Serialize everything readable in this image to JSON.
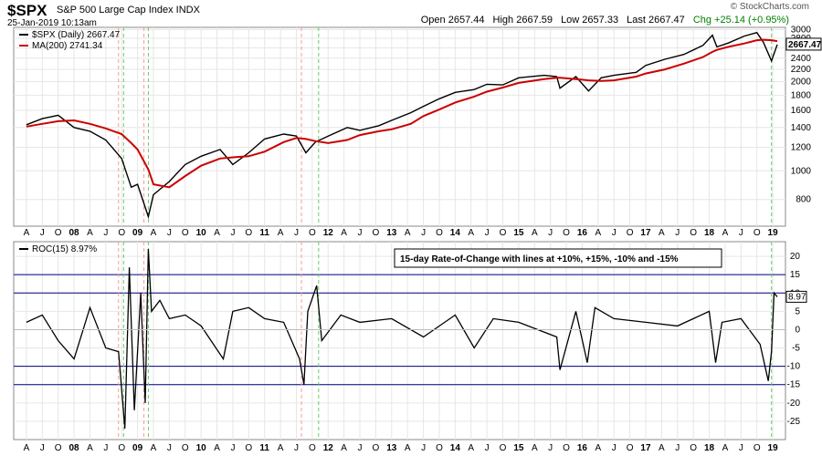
{
  "header": {
    "symbol": "$SPX",
    "name": "S&P 500 Large Cap Index  INDX",
    "date": "25-Jan-2019 10:13am",
    "open": "Open 2657.44",
    "high": "High 2667.59",
    "low": "Low 2657.33",
    "last": "Last 2667.47",
    "chg": "Chg +25.14 (+0.95%)",
    "credit": "© StockCharts.com",
    "chg_color": "#008000"
  },
  "chart_data": [
    {
      "type": "line",
      "title": "$SPX (Daily) 2667.47",
      "y_scale": "log",
      "ylim": [
        650,
        3050
      ],
      "y_ticks": [
        800,
        1000,
        1200,
        1400,
        1600,
        1800,
        2000,
        2200,
        2400,
        2600,
        2800,
        3000
      ],
      "last_value_label": "2667.47",
      "x": [
        2007.25,
        2007.5,
        2007.75,
        2008.0,
        2008.25,
        2008.5,
        2008.75,
        2008.9,
        2009.0,
        2009.17,
        2009.25,
        2009.5,
        2009.75,
        2010.0,
        2010.3,
        2010.5,
        2010.75,
        2011.0,
        2011.3,
        2011.5,
        2011.65,
        2011.8,
        2012.0,
        2012.3,
        2012.5,
        2012.8,
        2013.0,
        2013.3,
        2013.5,
        2013.75,
        2014.0,
        2014.3,
        2014.5,
        2014.75,
        2015.0,
        2015.4,
        2015.6,
        2015.65,
        2015.9,
        2016.1,
        2016.3,
        2016.5,
        2016.85,
        2017.0,
        2017.3,
        2017.6,
        2017.9,
        2018.05,
        2018.12,
        2018.3,
        2018.55,
        2018.75,
        2018.85,
        2018.98,
        2019.07
      ],
      "series": [
        {
          "name": "$SPX (Daily) 2667.47",
          "color": "#000000",
          "values": [
            1430,
            1500,
            1540,
            1400,
            1360,
            1270,
            1100,
            880,
            900,
            700,
            830,
            920,
            1050,
            1120,
            1180,
            1050,
            1150,
            1280,
            1330,
            1310,
            1150,
            1250,
            1310,
            1400,
            1370,
            1420,
            1480,
            1570,
            1650,
            1750,
            1840,
            1880,
            1960,
            1950,
            2060,
            2100,
            2080,
            1900,
            2080,
            1860,
            2060,
            2100,
            2150,
            2270,
            2380,
            2470,
            2650,
            2870,
            2620,
            2700,
            2850,
            2930,
            2720,
            2350,
            2667
          ]
        },
        {
          "name": "MA(200) 2741.34",
          "color": "#cc0000",
          "values": [
            1410,
            1440,
            1470,
            1480,
            1440,
            1390,
            1330,
            1240,
            1180,
            1010,
            900,
            880,
            960,
            1040,
            1100,
            1110,
            1120,
            1160,
            1250,
            1290,
            1280,
            1260,
            1240,
            1270,
            1320,
            1360,
            1380,
            1440,
            1530,
            1610,
            1700,
            1780,
            1850,
            1910,
            1980,
            2040,
            2060,
            2060,
            2040,
            2020,
            2010,
            2020,
            2080,
            2130,
            2200,
            2300,
            2420,
            2520,
            2560,
            2620,
            2690,
            2760,
            2770,
            2760,
            2741
          ]
        }
      ],
      "legend": "top-left"
    },
    {
      "type": "line",
      "title": "ROC(15) 8.97%",
      "ylim": [
        -30,
        24
      ],
      "y_ticks": [
        -25,
        -20,
        -15,
        -10,
        -5,
        0,
        5,
        10,
        15,
        20
      ],
      "reference_lines": [
        15,
        10,
        -10,
        -15
      ],
      "last_value_label": "8.97",
      "annotation": "15-day Rate-of-Change with lines at +10%, +15%, -10% and -15%",
      "x": [
        2007.25,
        2007.5,
        2007.75,
        2008.0,
        2008.25,
        2008.5,
        2008.7,
        2008.8,
        2008.87,
        2008.95,
        2009.05,
        2009.12,
        2009.17,
        2009.22,
        2009.35,
        2009.5,
        2009.75,
        2010.0,
        2010.35,
        2010.5,
        2010.75,
        2011.0,
        2011.3,
        2011.55,
        2011.62,
        2011.68,
        2011.82,
        2011.9,
        2012.2,
        2012.5,
        2013.0,
        2013.5,
        2014.0,
        2014.3,
        2014.6,
        2015.0,
        2015.6,
        2015.65,
        2015.9,
        2016.08,
        2016.2,
        2016.5,
        2017.0,
        2017.5,
        2018.0,
        2018.1,
        2018.2,
        2018.5,
        2018.8,
        2018.93,
        2018.98,
        2019.02,
        2019.07
      ],
      "series": [
        {
          "name": "ROC(15) 8.97%",
          "color": "#000000",
          "values": [
            2,
            4,
            -3,
            -8,
            6,
            -5,
            -6,
            -27,
            17,
            -22,
            10,
            -20,
            22,
            5,
            8,
            3,
            4,
            1,
            -8,
            5,
            6,
            3,
            2,
            -8,
            -15,
            5,
            12,
            -3,
            4,
            2,
            3,
            -2,
            4,
            -5,
            3,
            2,
            -2,
            -11,
            5,
            -9,
            6,
            3,
            2,
            1,
            5,
            -9,
            2,
            3,
            -4,
            -14,
            -6,
            10,
            8.97
          ]
        }
      ],
      "legend": "top-left"
    }
  ],
  "x_axis": {
    "labels": [
      "A",
      "J",
      "O",
      "08",
      "A",
      "J",
      "O",
      "09",
      "A",
      "J",
      "O",
      "10",
      "A",
      "J",
      "O",
      "11",
      "A",
      "J",
      "O",
      "12",
      "A",
      "J",
      "O",
      "13",
      "A",
      "J",
      "O",
      "14",
      "A",
      "J",
      "O",
      "15",
      "A",
      "J",
      "O",
      "16",
      "A",
      "J",
      "O",
      "17",
      "A",
      "J",
      "O",
      "18",
      "A",
      "J",
      "O",
      "19"
    ]
  },
  "event_markers": {
    "red": [
      2008.7,
      2009.1,
      2011.58
    ],
    "green": [
      2008.78,
      2009.17,
      2011.85,
      2018.98
    ],
    "red_color": "#ff9999",
    "green_color": "#66cc66"
  }
}
